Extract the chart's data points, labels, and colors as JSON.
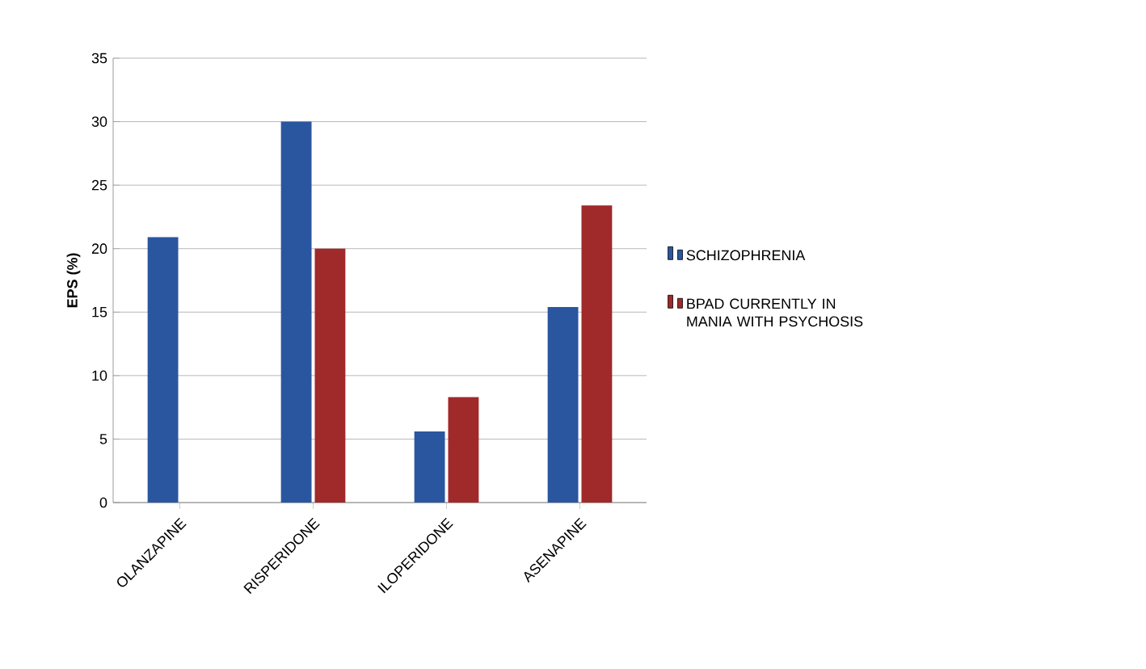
{
  "chart_data": {
    "type": "bar",
    "ylabel": "EPS (%)",
    "categories": [
      "OLANZAPINE",
      "RISPERIDONE",
      "ILOPERIDONE",
      "ASENAPINE"
    ],
    "series": [
      {
        "name": "SCHIZOPHRENIA",
        "color": "#2a56a0",
        "values": [
          20.9,
          30,
          5.6,
          15.4
        ]
      },
      {
        "name": "BPAD CURRENTLY IN MANIA WITH PSYCHOSIS",
        "color": "#a0292a",
        "values": [
          null,
          20,
          8.3,
          23.4
        ]
      }
    ],
    "ylim": [
      0,
      35
    ],
    "yticks": [
      0,
      5,
      10,
      15,
      20,
      25,
      30,
      35
    ],
    "grid": "y",
    "legend": "right"
  }
}
